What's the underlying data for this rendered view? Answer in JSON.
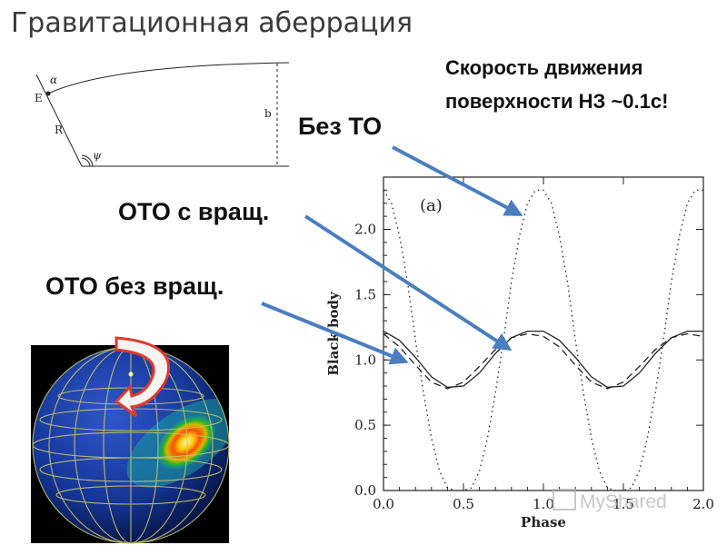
{
  "slide": {
    "title": "Гравитационная аберрация",
    "note_line1": "Скорость движения",
    "note_line2": "поверхности НЗ ~0.1c!",
    "label_no_gr": "Без ТО",
    "label_gr_rot": "ОТО с вращ.",
    "label_gr_norot": "ОТО без вращ.",
    "watermark": "MyShared"
  },
  "diagram": {
    "label_E": "E",
    "label_alpha": "α",
    "label_R": "R",
    "label_psi": "ψ",
    "label_b": "b"
  },
  "colors": {
    "arrow": "#4a7ebf",
    "rotation_arrow_border": "#e03a2a",
    "globe_bg": "#0a1f6a"
  },
  "chart_data": {
    "type": "line",
    "panel_label": "(a)",
    "xlabel": "Phase",
    "ylabel": "Black body",
    "xlim": [
      0,
      2
    ],
    "ylim": [
      0,
      2.4
    ],
    "x_ticks": [
      "0.0",
      "0.5",
      "1.0",
      "1.5",
      "2.0"
    ],
    "y_ticks": [
      "0.0",
      "0.5",
      "1.0",
      "1.5",
      "2.0"
    ],
    "series": [
      {
        "style": "dotted",
        "x": [
          0,
          0.05,
          0.1,
          0.15,
          0.2,
          0.25,
          0.3,
          0.35,
          0.4,
          0.45,
          0.5,
          0.55,
          0.6,
          0.65,
          0.7,
          0.75,
          0.8,
          0.85,
          0.9,
          0.95,
          1.0,
          1.05,
          1.1,
          1.15,
          1.2,
          1.25,
          1.3,
          1.35,
          1.4,
          1.45,
          1.5,
          1.55,
          1.6,
          1.65,
          1.7,
          1.75,
          1.8,
          1.85,
          1.9,
          1.95,
          2.0
        ],
        "y": [
          2.3,
          2.2,
          1.95,
          1.6,
          1.15,
          0.75,
          0.4,
          0.15,
          0.02,
          0.0,
          0.0,
          0.02,
          0.15,
          0.4,
          0.75,
          1.15,
          1.6,
          1.95,
          2.2,
          2.3,
          2.3,
          2.2,
          1.95,
          1.6,
          1.15,
          0.75,
          0.4,
          0.15,
          0.02,
          0.0,
          0.0,
          0.02,
          0.15,
          0.4,
          0.75,
          1.15,
          1.6,
          1.95,
          2.2,
          2.3,
          2.3
        ]
      },
      {
        "style": "solid",
        "x": [
          0,
          0.1,
          0.2,
          0.3,
          0.4,
          0.5,
          0.6,
          0.7,
          0.8,
          0.9,
          1.0,
          1.1,
          1.2,
          1.3,
          1.4,
          1.5,
          1.6,
          1.7,
          1.8,
          1.9,
          2.0
        ],
        "y": [
          1.22,
          1.15,
          1.02,
          0.87,
          0.79,
          0.8,
          0.9,
          1.05,
          1.17,
          1.22,
          1.22,
          1.15,
          1.02,
          0.87,
          0.79,
          0.8,
          0.9,
          1.05,
          1.17,
          1.22,
          1.22
        ]
      },
      {
        "style": "dashed",
        "x": [
          0,
          0.1,
          0.2,
          0.3,
          0.4,
          0.5,
          0.6,
          0.7,
          0.8,
          0.9,
          1.0,
          1.1,
          1.2,
          1.3,
          1.4,
          1.5,
          1.6,
          1.7,
          1.8,
          1.9,
          2.0
        ],
        "y": [
          1.2,
          1.1,
          0.96,
          0.83,
          0.78,
          0.83,
          0.95,
          1.08,
          1.17,
          1.2,
          1.18,
          1.1,
          0.96,
          0.83,
          0.78,
          0.83,
          0.95,
          1.08,
          1.17,
          1.2,
          1.18
        ]
      }
    ]
  }
}
